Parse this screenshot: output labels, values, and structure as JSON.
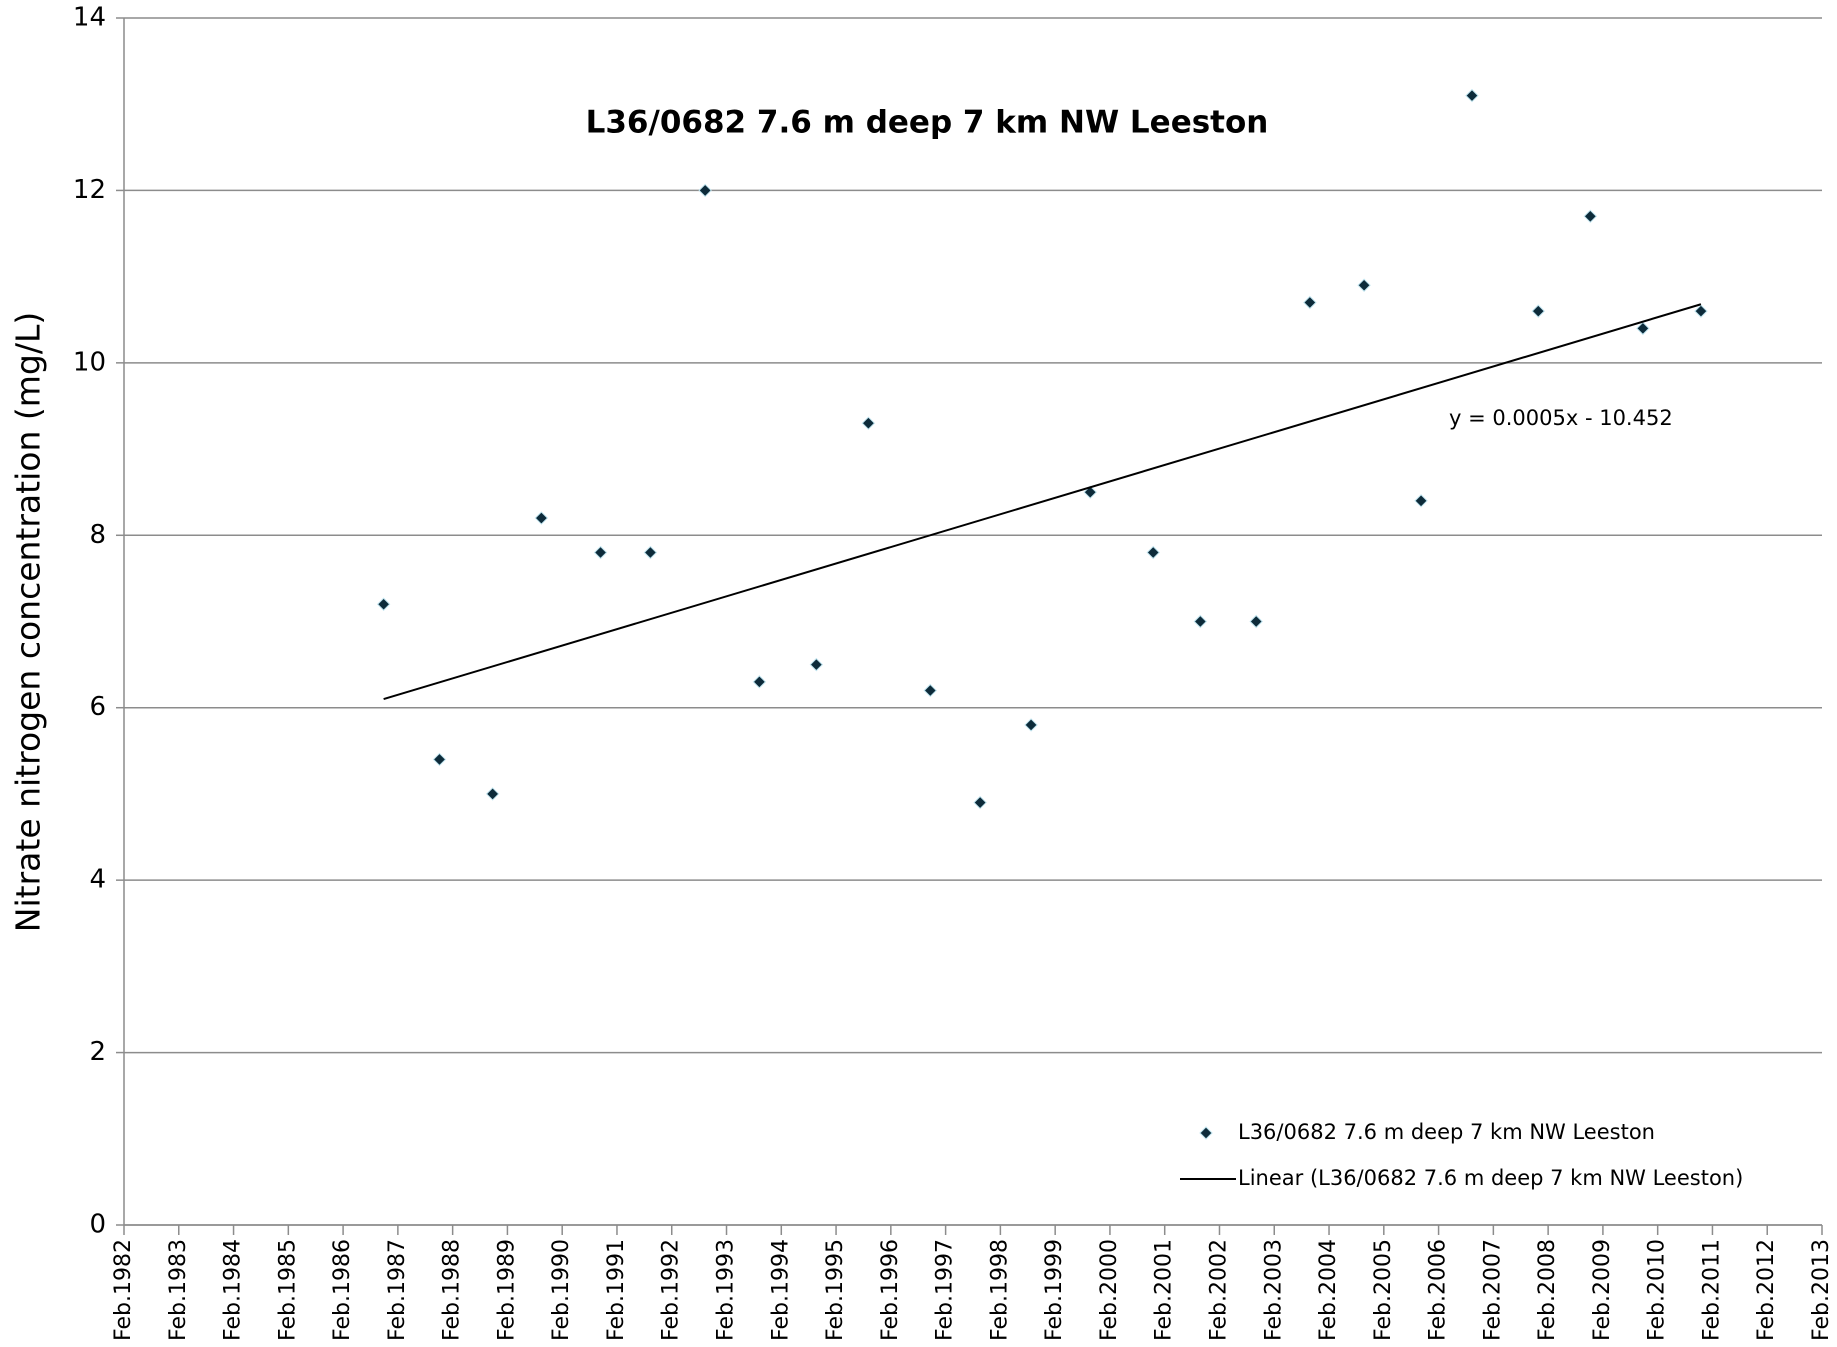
{
  "chart_data": {
    "type": "scatter",
    "title": "L36/0682   7.6 m deep   7 km NW Leeston",
    "y_label": "Nitrate nitrogen concentration (mg/L)",
    "annotation": "y = 0.0005x - 10.452",
    "series": [
      {
        "name": "L36/0682   7.6 m deep   7 km NW Leeston",
        "type": "scatter",
        "color": "#0d2b3a",
        "x": [
          1986.82,
          1987.84,
          1988.81,
          1989.7,
          1990.78,
          1991.69,
          1992.69,
          1993.68,
          1994.72,
          1995.67,
          1996.8,
          1997.71,
          1998.64,
          1999.72,
          2000.87,
          2001.73,
          2002.75,
          2003.73,
          2004.72,
          2005.76,
          2006.69,
          2007.9,
          2008.85,
          2009.81,
          2010.87
        ],
        "values": [
          7.2,
          5.4,
          5.0,
          8.2,
          7.8,
          7.8,
          12.0,
          6.3,
          6.5,
          9.3,
          6.2,
          4.9,
          5.8,
          8.5,
          7.8,
          7.0,
          7.0,
          10.7,
          10.9,
          8.4,
          13.1,
          10.6,
          11.7,
          10.4,
          10.6
        ]
      },
      {
        "name": "Linear (L36/0682   7.6 m deep   7 km NW Leeston)",
        "type": "line",
        "color": "#000000",
        "x": [
          1986.82,
          2010.87
        ],
        "values": [
          6.1,
          10.68
        ]
      }
    ],
    "xlim": [
      1982.08,
      2013.08
    ],
    "xticks": [
      {
        "value": 1982.08,
        "label": "Feb.1982"
      },
      {
        "value": 1983.08,
        "label": "Feb.1983"
      },
      {
        "value": 1984.08,
        "label": "Feb.1984"
      },
      {
        "value": 1985.08,
        "label": "Feb.1985"
      },
      {
        "value": 1986.08,
        "label": "Feb.1986"
      },
      {
        "value": 1987.08,
        "label": "Feb.1987"
      },
      {
        "value": 1988.08,
        "label": "Feb.1988"
      },
      {
        "value": 1989.08,
        "label": "Feb.1989"
      },
      {
        "value": 1990.08,
        "label": "Feb.1990"
      },
      {
        "value": 1991.08,
        "label": "Feb.1991"
      },
      {
        "value": 1992.08,
        "label": "Feb.1992"
      },
      {
        "value": 1993.08,
        "label": "Feb.1993"
      },
      {
        "value": 1994.08,
        "label": "Feb.1994"
      },
      {
        "value": 1995.08,
        "label": "Feb.1995"
      },
      {
        "value": 1996.08,
        "label": "Feb.1996"
      },
      {
        "value": 1997.08,
        "label": "Feb.1997"
      },
      {
        "value": 1998.08,
        "label": "Feb.1998"
      },
      {
        "value": 1999.08,
        "label": "Feb.1999"
      },
      {
        "value": 2000.08,
        "label": "Feb.2000"
      },
      {
        "value": 2001.08,
        "label": "Feb.2001"
      },
      {
        "value": 2002.08,
        "label": "Feb.2002"
      },
      {
        "value": 2003.08,
        "label": "Feb.2003"
      },
      {
        "value": 2004.08,
        "label": "Feb.2004"
      },
      {
        "value": 2005.08,
        "label": "Feb.2005"
      },
      {
        "value": 2006.08,
        "label": "Feb.2006"
      },
      {
        "value": 2007.08,
        "label": "Feb.2007"
      },
      {
        "value": 2008.08,
        "label": "Feb.2008"
      },
      {
        "value": 2009.08,
        "label": "Feb.2009"
      },
      {
        "value": 2010.08,
        "label": "Feb.2010"
      },
      {
        "value": 2011.08,
        "label": "Feb.2011"
      },
      {
        "value": 2012.08,
        "label": "Feb.2012"
      },
      {
        "value": 2013.08,
        "label": "Feb.2013"
      }
    ],
    "ylim": [
      0,
      14
    ],
    "yticks": [
      0,
      2,
      4,
      6,
      8,
      10,
      12,
      14
    ],
    "grid": true,
    "legend": "lower-right"
  }
}
